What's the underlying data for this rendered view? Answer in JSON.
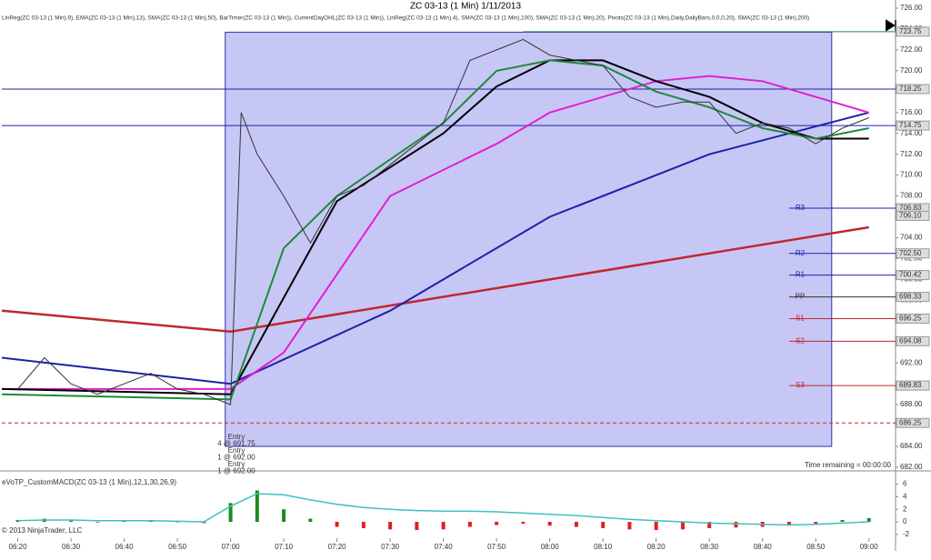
{
  "title": "ZC 03-13 (1 Min)  1/11/2013",
  "indicators": "LinReg(ZC 03-13 (1 Min),9), EMA(ZC 03-13 (1 Min),13), SMA(ZC 03-13 (1 Min),50), BarTimer(ZC 03-13 (1 Min)), CurrentDayOHL(ZC 03-13 (1 Min)), LinReg(ZC 03-13 (1 Min),4), SMA(ZC 03-13 (1 Min),100), SMA(ZC 03-13 (1 Min),20), Pivots(ZC 03-13 (1 Min),Daily,DailyBars,0,0,0,20), SMA(ZC 03-13 (1 Min),200)",
  "time_remaining": "Time remaining = 00:00:00",
  "copyright": "© 2013 NinjaTrader, LLC",
  "entries": [
    "Entry",
    "4 @ 691.75",
    "Entry",
    "1 @ 692.00",
    "Entry",
    "1 @ 692.00"
  ],
  "chart_data": [
    {
      "type": "line",
      "xlim": [
        "06:17",
        "09:05"
      ],
      "ylim": [
        682,
        726
      ],
      "xticks": [
        "06:20",
        "06:30",
        "06:40",
        "06:50",
        "07:00",
        "07:10",
        "07:20",
        "07:30",
        "07:40",
        "07:50",
        "08:00",
        "08:10",
        "08:20",
        "08:30",
        "08:40",
        "08:50",
        "09:00"
      ],
      "yticks": [
        {
          "value": 682,
          "label": "682.00"
        },
        {
          "value": 684,
          "label": "684.00"
        },
        {
          "value": 686,
          "label": "686.00"
        },
        {
          "value": 688,
          "label": "688.00"
        },
        {
          "value": 690,
          "label": "690.00"
        },
        {
          "value": 692,
          "label": "692.00"
        },
        {
          "value": 694,
          "label": "694.00"
        },
        {
          "value": 696,
          "label": "696.00"
        },
        {
          "value": 698,
          "label": "698.00"
        },
        {
          "value": 700,
          "label": "700.00"
        },
        {
          "value": 702,
          "label": "702.00"
        },
        {
          "value": 704,
          "label": "704.00"
        },
        {
          "value": 706,
          "label": "706.00"
        },
        {
          "value": 708,
          "label": "708.00"
        },
        {
          "value": 710,
          "label": "710.00"
        },
        {
          "value": 712,
          "label": "712.00"
        },
        {
          "value": 714,
          "label": "714.00"
        },
        {
          "value": 716,
          "label": "716.00"
        },
        {
          "value": 718,
          "label": "718.00"
        },
        {
          "value": 720,
          "label": "720.00"
        },
        {
          "value": 722,
          "label": "722.00"
        },
        {
          "value": 724,
          "label": "724.00"
        },
        {
          "value": 726,
          "label": "726.00"
        }
      ],
      "zone": {
        "x": [
          "06:59",
          "08:53"
        ],
        "y": [
          684,
          723.7
        ],
        "color": "#9999ee"
      },
      "series": [
        {
          "color": "#c0272d",
          "width": 2.5,
          "x": [
            "06:17",
            "07:00",
            "07:30",
            "08:00",
            "08:30",
            "09:00"
          ],
          "values": [
            697,
            695,
            697.5,
            700,
            702.5,
            705
          ]
        },
        {
          "color": "#1c22a8",
          "width": 2,
          "x": [
            "06:17",
            "07:00",
            "07:30",
            "08:00",
            "08:30",
            "09:00"
          ],
          "values": [
            692.5,
            690,
            697,
            706,
            712,
            716
          ]
        },
        {
          "color": "#e020d0",
          "width": 2,
          "x": [
            "06:17",
            "07:00",
            "07:10",
            "07:30",
            "07:50",
            "08:00",
            "08:20",
            "08:30",
            "08:40",
            "08:50",
            "09:00"
          ],
          "values": [
            689.5,
            689.5,
            693,
            708,
            713,
            716,
            719,
            719.5,
            719,
            717.5,
            716
          ]
        },
        {
          "color": "#000000",
          "width": 2,
          "x": [
            "06:17",
            "07:00",
            "07:20",
            "07:40",
            "07:50",
            "08:00",
            "08:10",
            "08:20",
            "08:30",
            "08:40",
            "08:50",
            "09:00"
          ],
          "values": [
            689.5,
            689,
            707.5,
            714,
            718.5,
            721,
            721,
            719,
            717.5,
            715,
            713.5,
            713.5
          ]
        },
        {
          "color": "#1e8a3a",
          "width": 2,
          "x": [
            "06:17",
            "07:00",
            "07:10",
            "07:20",
            "07:40",
            "07:50",
            "08:00",
            "08:10",
            "08:20",
            "08:30",
            "08:40",
            "08:50",
            "09:00"
          ],
          "values": [
            689,
            688.5,
            703,
            708,
            715,
            720,
            721,
            720.5,
            718,
            716.5,
            714.5,
            713.5,
            714.5
          ]
        },
        {
          "color": "#333333",
          "width": 1,
          "x": [
            "06:20",
            "06:25",
            "06:30",
            "06:35",
            "06:40",
            "06:45",
            "06:50",
            "06:55",
            "07:00",
            "07:02",
            "07:05",
            "07:10",
            "07:15",
            "07:20",
            "07:25",
            "07:30",
            "07:35",
            "07:40",
            "07:45",
            "07:50",
            "07:55",
            "08:00",
            "08:05",
            "08:10",
            "08:15",
            "08:20",
            "08:25",
            "08:30",
            "08:35",
            "08:40",
            "08:45",
            "08:50",
            "08:55",
            "09:00"
          ],
          "values": [
            689.5,
            692.5,
            690,
            689,
            690,
            691,
            689.5,
            689,
            688,
            716,
            712,
            708,
            703.5,
            708,
            709,
            711,
            713,
            715,
            721,
            722,
            723,
            721.5,
            721,
            720.5,
            717.5,
            716.5,
            717,
            717,
            714,
            715,
            714.5,
            713,
            714.5,
            715.5
          ]
        }
      ],
      "levels": [
        {
          "value": 723.75,
          "label": "723.75",
          "color": "#1e8a3a",
          "from": "07:55"
        },
        {
          "value": 718.25,
          "label": "718.25",
          "color": "#1c22a8",
          "from": "06:17"
        },
        {
          "value": 714.75,
          "label": "714.75",
          "color": "#1c22a8",
          "from": "06:17"
        },
        {
          "value": 706.83,
          "label": "706.83",
          "name": "R3",
          "color": "#1c22a8",
          "from": "08:45"
        },
        {
          "value": 706.1,
          "label": "706.10",
          "color": "#c0272d",
          "from": "09:05"
        },
        {
          "value": 702.5,
          "label": "702.50",
          "name": "R2",
          "color": "#1c22a8",
          "from": "08:45"
        },
        {
          "value": 700.42,
          "label": "700.42",
          "name": "R1",
          "color": "#1c22a8",
          "from": "08:45"
        },
        {
          "value": 698.33,
          "label": "698.33",
          "name": "PP",
          "color": "#333333",
          "from": "08:45"
        },
        {
          "value": 696.25,
          "label": "696.25",
          "name": "S1",
          "color": "#c0272d",
          "from": "08:45"
        },
        {
          "value": 694.08,
          "label": "694.08",
          "name": "S2",
          "color": "#c0272d",
          "from": "08:45"
        },
        {
          "value": 689.83,
          "label": "689.83",
          "name": "S3",
          "color": "#c0272d",
          "from": "08:45"
        },
        {
          "value": 686.25,
          "label": "686.25",
          "color": "#e02020",
          "from": "06:17"
        }
      ]
    },
    {
      "type": "bar",
      "title": "eVoTP_CustomMACD(ZC 03-13 (1 Min),12,1,30,26,9)",
      "xlim": [
        "06:17",
        "09:05"
      ],
      "ylim": [
        -2.6,
        7.1
      ],
      "yticks": [
        -2,
        0,
        2,
        4,
        6
      ],
      "x": [
        "06:20",
        "06:25",
        "06:30",
        "06:35",
        "06:40",
        "06:45",
        "06:50",
        "06:55",
        "07:00",
        "07:05",
        "07:10",
        "07:15",
        "07:20",
        "07:25",
        "07:30",
        "07:35",
        "07:40",
        "07:45",
        "07:50",
        "07:55",
        "08:00",
        "08:05",
        "08:10",
        "08:15",
        "08:20",
        "08:25",
        "08:30",
        "08:35",
        "08:40",
        "08:45",
        "08:50",
        "08:55",
        "09:00"
      ],
      "values": [
        0.3,
        0.5,
        0.2,
        -0.1,
        0.2,
        0.2,
        0,
        -0.2,
        3,
        5,
        2,
        0.5,
        -0.8,
        -1,
        -1.2,
        -1.3,
        -1.2,
        -0.8,
        -0.5,
        -0.3,
        -0.6,
        -0.8,
        -1,
        -1.2,
        -1.3,
        -1.2,
        -1,
        -0.9,
        -0.8,
        -0.5,
        -0.3,
        0.3,
        0.6
      ],
      "colors": {
        "positive": "#1e8a1e",
        "negative": "#e02020"
      },
      "signal": {
        "color": "#40c0c0",
        "values": [
          0.2,
          0.3,
          0.3,
          0.2,
          0.2,
          0.2,
          0.1,
          0,
          2.5,
          4.5,
          4.3,
          3.5,
          2.8,
          2.3,
          2,
          1.8,
          1.7,
          1.7,
          1.6,
          1.4,
          1.2,
          1,
          0.7,
          0.4,
          0.2,
          0,
          -0.2,
          -0.3,
          -0.4,
          -0.5,
          -0.4,
          -0.2,
          0
        ]
      }
    }
  ]
}
